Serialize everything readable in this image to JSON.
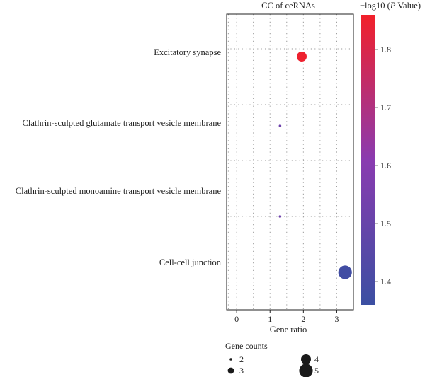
{
  "chart_data": {
    "type": "scatter",
    "title": "CC of ceRNAs",
    "xlabel": "Gene ratio",
    "ylabel": "",
    "xlim": [
      -0.3,
      3.5
    ],
    "xticks": [
      0,
      1,
      2,
      3
    ],
    "categories": [
      "Excitatory synapse",
      "Clathrin-sculpted glutamate transport vesicle membrane",
      "Clathrin-sculpted monoamine transport vesicle membrane",
      "Cell-cell junction"
    ],
    "points": [
      {
        "term": "Excitatory synapse",
        "gene_ratio": 1.95,
        "gene_count": 4,
        "neg_log10_p": 1.85
      },
      {
        "term": "Clathrin-sculpted glutamate transport vesicle membrane",
        "gene_ratio": 1.3,
        "gene_count": 2,
        "neg_log10_p": 1.52
      },
      {
        "term": "Clathrin-sculpted monoamine transport vesicle membrane",
        "gene_ratio": 1.3,
        "gene_count": 2,
        "neg_log10_p": 1.52
      },
      {
        "term": "Cell-cell junction",
        "gene_ratio": 3.25,
        "gene_count": 5,
        "neg_log10_p": 1.38
      }
    ],
    "colorbar": {
      "title_prefix": "−log10 (",
      "title_italic": "P",
      "title_suffix": " Value)",
      "range": [
        1.36,
        1.86
      ],
      "ticks": [
        1.4,
        1.5,
        1.6,
        1.7,
        1.8
      ],
      "colors": [
        "#3b4fa2",
        "#8a3bb0",
        "#f2202a"
      ]
    },
    "size_legend": {
      "title": "Gene counts",
      "entries": [
        2,
        3,
        4,
        5
      ]
    },
    "grid": true,
    "point_color_low": "#3b4fa2",
    "point_color_high": "#f2202a"
  }
}
